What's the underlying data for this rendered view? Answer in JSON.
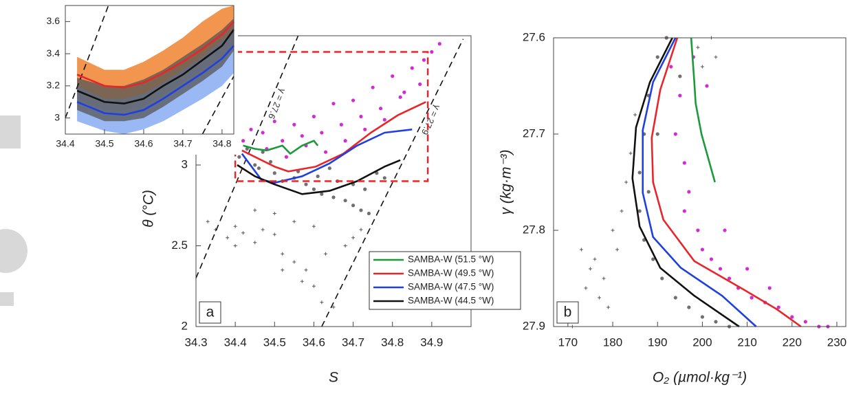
{
  "chart_data": [
    {
      "type": "line",
      "xlim": [
        34.4,
        34.83
      ],
      "ylim": [
        2.9,
        3.7
      ],
      "xticks": [
        34.4,
        34.5,
        34.6,
        34.7,
        34.8
      ],
      "yticks": [
        3,
        3.2,
        3.4,
        3.6
      ],
      "x": [
        34.43,
        34.5,
        34.55,
        34.6,
        34.65,
        34.7,
        34.75,
        34.8,
        34.83
      ],
      "series": [
        {
          "color": "#e8262a",
          "band_color": "#f08a3c",
          "values": [
            3.27,
            3.2,
            3.19,
            3.22,
            3.28,
            3.35,
            3.43,
            3.52,
            3.6
          ],
          "lower": [
            3.12,
            3.05,
            3.05,
            3.08,
            3.14,
            3.22,
            3.3,
            3.38,
            3.45
          ],
          "upper": [
            3.38,
            3.3,
            3.3,
            3.35,
            3.42,
            3.5,
            3.6,
            3.68,
            3.7
          ]
        },
        {
          "color": "#1f3fe0",
          "band_color": "#8fb0f2",
          "values": [
            3.1,
            3.03,
            3.02,
            3.05,
            3.12,
            3.2,
            3.28,
            3.37,
            3.45
          ],
          "lower": [
            2.98,
            2.92,
            2.9,
            2.93,
            2.98,
            3.05,
            3.12,
            3.2,
            3.28
          ],
          "upper": [
            3.2,
            3.12,
            3.12,
            3.15,
            3.22,
            3.3,
            3.38,
            3.48,
            3.55
          ]
        },
        {
          "color": "#111111",
          "band_color": "#555555",
          "values": [
            3.17,
            3.1,
            3.09,
            3.12,
            3.2,
            3.27,
            3.36,
            3.45,
            3.55
          ],
          "lower": [
            3.05,
            2.98,
            2.98,
            3.0,
            3.07,
            3.15,
            3.23,
            3.32,
            3.42
          ],
          "upper": [
            3.25,
            3.2,
            3.2,
            3.24,
            3.3,
            3.38,
            3.46,
            3.55,
            3.62
          ]
        }
      ],
      "isolines": [
        {
          "x": [
            34.4,
            34.51
          ],
          "y": [
            3.0,
            3.7
          ]
        },
        {
          "x": [
            34.75,
            34.83
          ],
          "y": [
            2.9,
            3.26
          ]
        }
      ]
    },
    {
      "type": "line",
      "panel_label": "a",
      "x_label": "S",
      "y_label": "θ (°C)",
      "xlim": [
        34.3,
        35.0
      ],
      "ylim": [
        2,
        3.8
      ],
      "xticks": [
        34.3,
        34.4,
        34.5,
        34.6,
        34.7,
        34.8,
        34.9
      ],
      "yticks": [
        2,
        2.5,
        3
      ],
      "legend": "lower right",
      "scatter": [
        {
          "color": "#d42ad4",
          "marker": "dot",
          "x": [
            34.42,
            34.44,
            34.47,
            34.5,
            34.52,
            34.55,
            34.57,
            34.6,
            34.62,
            34.65,
            34.67,
            34.7,
            34.72,
            34.75,
            34.77,
            34.8,
            34.82,
            34.85,
            34.87,
            34.9,
            34.92,
            34.48,
            34.58,
            34.68,
            34.78,
            34.88,
            34.53,
            34.63,
            34.73,
            34.83
          ],
          "values": [
            3.15,
            3.22,
            3.2,
            3.27,
            3.15,
            3.25,
            3.18,
            3.3,
            3.2,
            3.38,
            3.25,
            3.4,
            3.3,
            3.48,
            3.35,
            3.55,
            3.42,
            3.6,
            3.5,
            3.7,
            3.75,
            3.1,
            3.12,
            3.15,
            3.28,
            3.65,
            3.05,
            3.08,
            3.22,
            3.45
          ]
        },
        {
          "color": "#707070",
          "marker": "dot",
          "x": [
            34.41,
            34.43,
            34.45,
            34.47,
            34.5,
            34.52,
            34.55,
            34.58,
            34.6,
            34.62,
            34.65,
            34.68,
            34.7,
            34.72,
            34.74,
            34.76,
            34.66,
            34.64,
            34.7,
            34.73,
            34.46,
            34.49,
            34.56,
            34.61,
            34.78
          ],
          "values": [
            3.05,
            3.1,
            3.0,
            3.08,
            2.95,
            2.9,
            2.92,
            2.88,
            2.85,
            2.82,
            2.8,
            2.78,
            2.75,
            2.72,
            2.7,
            2.95,
            2.9,
            2.98,
            2.88,
            2.85,
            2.98,
            3.02,
            2.96,
            2.93,
            2.92
          ]
        },
        {
          "color": "#555555",
          "marker": "cross",
          "x": [
            34.33,
            34.35,
            34.38,
            34.4,
            34.42,
            34.45,
            34.47,
            34.5,
            34.52,
            34.55,
            34.58,
            34.6,
            34.62,
            34.65,
            34.68,
            34.7,
            34.5,
            34.55,
            34.6,
            34.63,
            34.45,
            34.4,
            34.52,
            34.57,
            34.72
          ],
          "values": [
            2.65,
            2.6,
            2.55,
            2.62,
            2.58,
            2.52,
            2.6,
            2.57,
            2.45,
            2.4,
            2.35,
            2.25,
            2.15,
            2.12,
            2.5,
            2.55,
            2.7,
            2.65,
            2.62,
            2.45,
            2.72,
            2.5,
            2.35,
            2.28,
            2.6
          ]
        }
      ],
      "series": [
        {
          "name": "SAMBA-W (51.5 °W)",
          "color": "#1a9a3a",
          "x": [
            34.42,
            34.45,
            34.48,
            34.52,
            34.54,
            34.57,
            34.6,
            34.61
          ],
          "values": [
            3.12,
            3.1,
            3.09,
            3.12,
            3.07,
            3.12,
            3.15,
            3.12
          ]
        },
        {
          "name": "SAMBA-W (49.5 °W)",
          "color": "#e8262a",
          "x": [
            34.417,
            34.5,
            34.535,
            34.605,
            34.675,
            34.745,
            34.815,
            34.885
          ],
          "values": [
            3.09,
            2.99,
            2.96,
            2.99,
            3.07,
            3.2,
            3.31,
            3.39
          ]
        },
        {
          "name": "SAMBA-W (47.5 °W)",
          "color": "#1f3fe0",
          "x": [
            34.417,
            34.466,
            34.5,
            34.57,
            34.64,
            34.71,
            34.78,
            34.85
          ],
          "values": [
            3.07,
            2.91,
            2.89,
            2.93,
            3.01,
            3.12,
            3.2,
            3.22
          ]
        },
        {
          "name": "SAMBA-W (44.5 °W)",
          "color": "#111111",
          "x": [
            34.405,
            34.45,
            34.5,
            34.57,
            34.64,
            34.71,
            34.78,
            34.82
          ],
          "values": [
            3.0,
            2.93,
            2.88,
            2.82,
            2.84,
            2.9,
            2.99,
            3.03
          ]
        }
      ],
      "isolines": [
        {
          "label": "γ = 27.6",
          "x": [
            34.3,
            34.56
          ],
          "y": [
            2.3,
            3.8
          ]
        },
        {
          "label": "γ = 27.9",
          "x": [
            34.62,
            34.98
          ],
          "y": [
            2.0,
            3.78
          ]
        }
      ],
      "zoom_box": {
        "xlim": [
          34.4,
          34.89
        ],
        "ylim": [
          2.9,
          3.7
        ],
        "color": "#e8262a"
      }
    },
    {
      "type": "line",
      "panel_label": "b",
      "x_label": "O₂ (µmol·kg⁻¹)",
      "y_label": "γ (kg·m⁻³)",
      "xlim": [
        166.8,
        232
      ],
      "ylim": [
        27.9,
        27.6
      ],
      "xticks": [
        170,
        180,
        190,
        200,
        210,
        220,
        230
      ],
      "yticks": [
        27.6,
        27.7,
        27.8,
        27.9
      ],
      "scatter": [
        {
          "color": "#d42ad4",
          "marker": "dot",
          "x": [
            192,
            193,
            195,
            194,
            196,
            197,
            196,
            199,
            200,
            202,
            204,
            206,
            208,
            211,
            214,
            217,
            220,
            223,
            226,
            228,
            198,
            201,
            205,
            210,
            215
          ],
          "values": [
            27.6,
            27.63,
            27.66,
            27.7,
            27.73,
            27.76,
            27.78,
            27.8,
            27.82,
            27.83,
            27.84,
            27.85,
            27.86,
            27.87,
            27.875,
            27.88,
            27.89,
            27.895,
            27.9,
            27.9,
            27.62,
            27.65,
            27.8,
            27.84,
            27.86
          ]
        },
        {
          "color": "#707070",
          "marker": "dot",
          "x": [
            190,
            188,
            187,
            186,
            186,
            187,
            189,
            191,
            194,
            197,
            200,
            203,
            206,
            195,
            192,
            190,
            188
          ],
          "values": [
            27.62,
            27.66,
            27.7,
            27.74,
            27.78,
            27.81,
            27.83,
            27.85,
            27.87,
            27.88,
            27.89,
            27.895,
            27.9,
            27.64,
            27.6,
            27.7,
            27.76
          ]
        },
        {
          "color": "#555555",
          "marker": "cross",
          "x": [
            171,
            172,
            174,
            176,
            178,
            180,
            182,
            183,
            181,
            179,
            177,
            175,
            173,
            199,
            200,
            202,
            203,
            184,
            185
          ],
          "values": [
            27.9,
            27.88,
            27.86,
            27.83,
            27.85,
            27.8,
            27.78,
            27.75,
            27.82,
            27.88,
            27.87,
            27.84,
            27.82,
            27.61,
            27.63,
            27.6,
            27.62,
            27.72,
            27.68
          ]
        }
      ],
      "series": [
        {
          "color": "#1a9a3a",
          "x": [
            197.5,
            198.2,
            198.5,
            199.8,
            201.3,
            202.8
          ],
          "values": [
            27.6,
            27.646,
            27.668,
            27.7,
            27.725,
            27.75
          ]
        },
        {
          "color": "#e8262a",
          "x": [
            194.4,
            190.6,
            188.7,
            189.0,
            191.3,
            198.2,
            209.0,
            216.6,
            222.0
          ],
          "values": [
            27.6,
            27.654,
            27.704,
            27.75,
            27.789,
            27.832,
            27.861,
            27.882,
            27.9
          ]
        },
        {
          "color": "#1f3fe0",
          "x": [
            194.0,
            189.0,
            186.7,
            186.7,
            189.0,
            195.2,
            204.4,
            212.0
          ],
          "values": [
            27.6,
            27.646,
            27.696,
            27.761,
            27.807,
            27.839,
            27.868,
            27.9
          ]
        },
        {
          "color": "#111111",
          "x": [
            193.3,
            188.3,
            185.2,
            184.4,
            186.0,
            190.6,
            198.2,
            208.2
          ],
          "values": [
            27.6,
            27.646,
            27.693,
            27.746,
            27.796,
            27.839,
            27.868,
            27.9
          ]
        }
      ]
    }
  ]
}
